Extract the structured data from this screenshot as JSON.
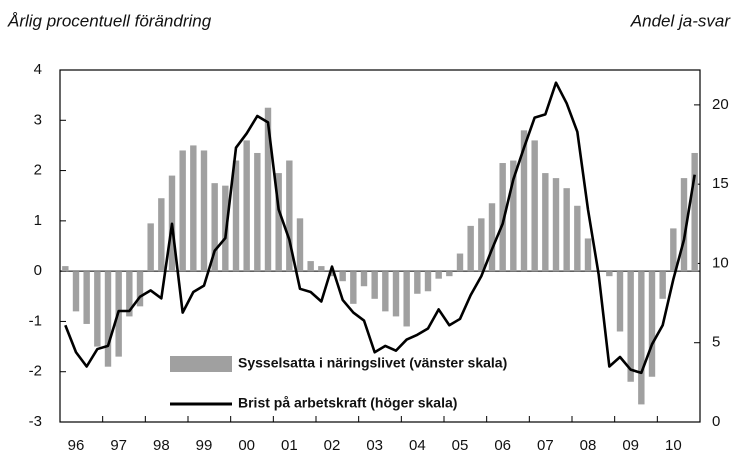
{
  "chart_data": {
    "type": "bar_line",
    "title_left": "Årlig procentuell förändring",
    "title_right": "Andel ja-svar",
    "categories": [
      "96",
      null,
      null,
      null,
      "97",
      null,
      null,
      null,
      "98",
      null,
      null,
      null,
      "99",
      null,
      null,
      null,
      "00",
      null,
      null,
      null,
      "01",
      null,
      null,
      null,
      "02",
      null,
      null,
      null,
      "03",
      null,
      null,
      null,
      "04",
      null,
      null,
      null,
      "05",
      null,
      null,
      null,
      "06",
      null,
      null,
      null,
      "07",
      null,
      null,
      null,
      "08",
      null,
      null,
      null,
      "09",
      null,
      null,
      null,
      "10",
      null,
      null,
      null
    ],
    "series": [
      {
        "name": "Sysselsatta i näringslivet (vänster skala)",
        "color": "#a0a0a0",
        "kind": "bar",
        "values": [
          0.1,
          -0.8,
          -1.05,
          -1.5,
          -1.9,
          -1.7,
          -0.9,
          -0.7,
          0.95,
          1.45,
          1.9,
          2.4,
          2.5,
          2.4,
          1.75,
          1.7,
          2.2,
          2.6,
          2.35,
          3.25,
          1.95,
          2.2,
          1.05,
          0.2,
          0.1,
          -0.1,
          -0.2,
          -0.65,
          -0.3,
          -0.55,
          -0.8,
          -0.9,
          -1.1,
          -0.45,
          -0.4,
          -0.15,
          -0.1,
          0.35,
          0.9,
          1.05,
          1.35,
          2.15,
          2.2,
          2.8,
          2.6,
          1.95,
          1.85,
          1.65,
          1.3,
          0.65,
          0,
          -0.1,
          -1.2,
          -2.2,
          -2.65,
          -2.1,
          -0.55,
          0.85,
          1.85,
          2.35
        ]
      },
      {
        "name": "Brist på arbetskraft (höger skala)",
        "color": "#000000",
        "kind": "line",
        "axis": "y2",
        "values": [
          6.1,
          4.4,
          3.5,
          4.6,
          4.8,
          7.0,
          7.0,
          7.9,
          8.3,
          7.8,
          12.5,
          6.9,
          8.2,
          8.6,
          10.8,
          11.6,
          17.3,
          18.2,
          19.3,
          18.9,
          13.4,
          11.5,
          8.4,
          8.2,
          7.6,
          9.8,
          7.7,
          6.9,
          6.4,
          4.4,
          4.8,
          4.5,
          5.2,
          5.5,
          5.9,
          7.1,
          6.1,
          6.5,
          8.0,
          9.2,
          10.9,
          12.5,
          15.3,
          17.3,
          19.2,
          19.4,
          21.4,
          20.1,
          18.3,
          13.4,
          9.3,
          3.5,
          4.1,
          3.3,
          3.1,
          4.9,
          6.1,
          9.0,
          11.5,
          15.6
        ]
      }
    ],
    "ylim": [
      -3,
      4
    ],
    "yticks": [
      4,
      3,
      2,
      1,
      0,
      -1,
      -2,
      -3
    ],
    "y2lim": [
      0,
      22.2
    ],
    "y2ticks": [
      20,
      15,
      10,
      5,
      0
    ]
  }
}
